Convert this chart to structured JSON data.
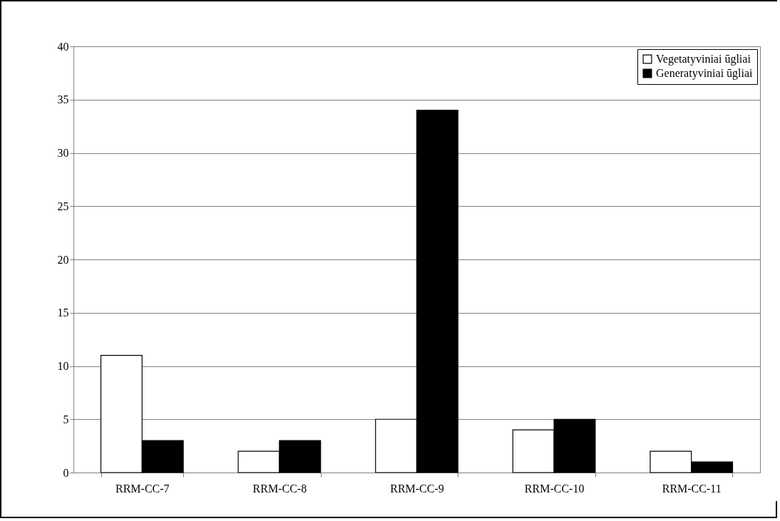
{
  "chart_data": {
    "type": "bar",
    "categories": [
      "RRM-CC-7",
      "RRM-CC-8",
      "RRM-CC-9",
      "RRM-CC-10",
      "RRM-CC-11"
    ],
    "series": [
      {
        "name": "Vegetatyviniai ūgliai",
        "color": "#ffffff",
        "values": [
          11,
          2,
          5,
          4,
          2
        ]
      },
      {
        "name": "Generatyviniai ūgliai",
        "color": "#000000",
        "values": [
          3,
          3,
          34,
          5,
          1
        ]
      }
    ],
    "ylim": [
      0,
      40
    ],
    "yticks": [
      0,
      5,
      10,
      15,
      20,
      25,
      30,
      35,
      40
    ],
    "grid": "y",
    "legend": "top right"
  }
}
